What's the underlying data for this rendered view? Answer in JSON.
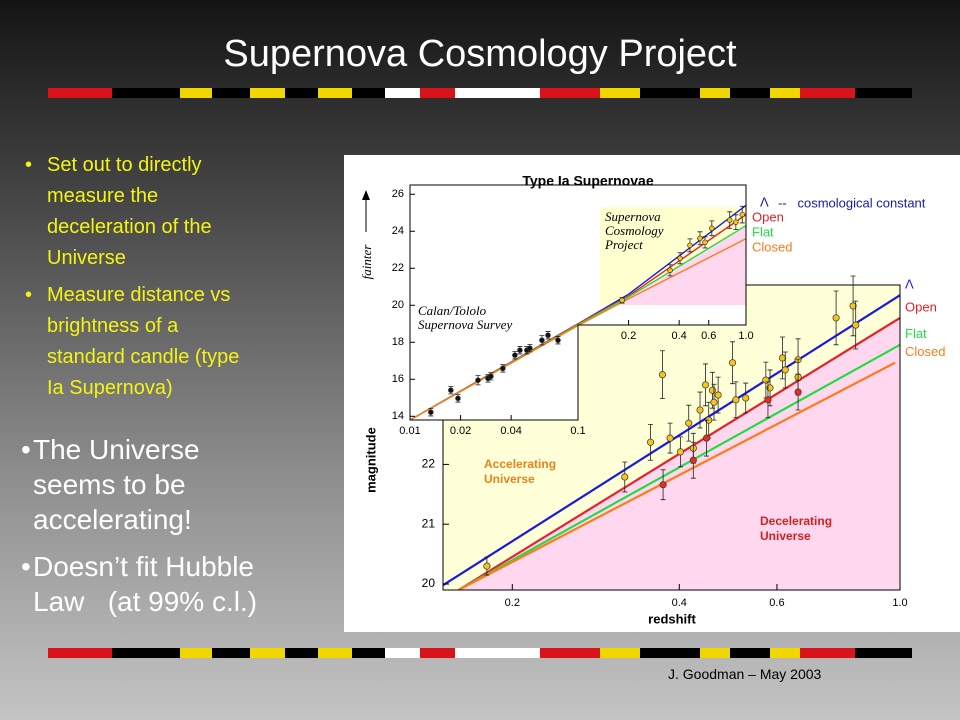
{
  "header": {
    "title": "Supernova Cosmology Project"
  },
  "bullets": [
    [
      "Set out to directly",
      "measure the",
      "deceleration of the",
      "Universe"
    ],
    [
      "Measure distance vs",
      "brightness of a",
      "standard candle (type",
      "Ia Supernova)"
    ]
  ],
  "highlights": [
    [
      "The Universe",
      "seems to be",
      "accelerating!"
    ],
    [
      "Doesn’t fit Hubble",
      "Law   (at 99% c.l.)"
    ]
  ],
  "footer": "J. Goodman – May 2003",
  "figure": {
    "title": "Type Ia Supernovae",
    "main": {
      "type": "scatter",
      "log_x": true,
      "x_label": "redshift",
      "y_label": "magnitude",
      "xlim": [
        0.15,
        1.0
      ],
      "ylim": [
        19.9,
        25.0
      ],
      "xticks": [
        0.2,
        0.4,
        0.6,
        {
          "value": 1,
          "label": "1.0"
        }
      ],
      "yticks": [
        20,
        21,
        22
      ],
      "regions": [
        {
          "lines": [
            "Accelerating",
            "Universe"
          ],
          "color": "#e8821e"
        },
        {
          "lines": [
            "Decelerating",
            "Universe"
          ],
          "color": "#d42020"
        }
      ],
      "series": [
        {
          "name": "Λ",
          "color": "#1a1adf",
          "x": [
            0.15,
            1.0
          ],
          "values": [
            19.98,
            24.83
          ]
        },
        {
          "name": "Open",
          "color": "#e8202a",
          "x": [
            0.16,
            1.0
          ],
          "values": [
            19.9,
            24.45
          ]
        },
        {
          "name": "Flat",
          "color": "#22dd44",
          "x": [
            0.16,
            1.0
          ],
          "values": [
            19.9,
            24.0
          ]
        },
        {
          "name": "Closed",
          "color": "#ff7a1a",
          "x": [
            0.16,
            0.98
          ],
          "values": [
            19.9,
            23.7
          ]
        }
      ],
      "points": [
        {
          "color": "#f5c518",
          "x": [
            0.18,
            0.319,
            0.355,
            0.373,
            0.385,
            0.402,
            0.416,
            0.424,
            0.436,
            0.446,
            0.452,
            0.459,
            0.462,
            0.47,
            0.499,
            0.506,
            0.527,
            0.573,
            0.583,
            0.614,
            0.621,
            0.655,
            0.655,
            0.767,
            0.823,
            0.832
          ],
          "values": [
            20.3,
            21.79,
            22.37,
            23.5,
            22.44,
            22.21,
            22.69,
            22.27,
            22.91,
            23.33,
            22.74,
            23.24,
            23.04,
            23.16,
            23.7,
            23.08,
            23.11,
            23.41,
            23.28,
            23.78,
            23.58,
            23.75,
            23.46,
            24.45,
            24.65,
            24.33
          ],
          "errors": [
            0.15,
            0.25,
            0.3,
            0.4,
            0.25,
            0.25,
            0.3,
            0.25,
            0.3,
            0.35,
            0.3,
            0.3,
            0.3,
            0.3,
            0.35,
            0.3,
            0.25,
            0.3,
            0.3,
            0.35,
            0.3,
            0.35,
            0.3,
            0.45,
            0.5,
            0.4
          ]
        },
        {
          "color": "#e03020",
          "x": [
            0.374,
            0.424,
            0.448,
            0.578,
            0.655
          ],
          "values": [
            21.66,
            22.07,
            22.44,
            23.08,
            23.21
          ],
          "errors": [
            0.25,
            0.3,
            0.3,
            0.3,
            0.3
          ]
        }
      ]
    },
    "inset": {
      "type": "scatter",
      "log_x": true,
      "y_label": "fainter",
      "xlim": [
        0.01,
        1.0
      ],
      "ylim": [
        13.8,
        26.5
      ],
      "xticks": [
        0.01,
        0.02,
        0.04,
        0.1,
        0.2,
        0.4,
        0.6,
        {
          "value": 1,
          "label": "1.0"
        }
      ],
      "yticks": [
        14,
        16,
        18,
        20,
        22,
        24,
        26
      ],
      "annotations": [
        {
          "lines": [
            "Supernova",
            "Cosmology",
            "Project"
          ]
        },
        {
          "lines": [
            "Calan/Tololo",
            "Supernova Survey"
          ]
        }
      ],
      "legend_note": "--   cosmological constant",
      "series": [
        {
          "name": "Λ",
          "color": "#1a1adf",
          "x": [
            0.01,
            0.1,
            0.2,
            1.0
          ],
          "values": [
            13.8,
            19.0,
            20.6,
            25.4
          ]
        },
        {
          "name": "Open",
          "color": "#e8202a",
          "x": [
            0.01,
            0.1,
            0.2,
            1.0
          ],
          "values": [
            13.8,
            19.0,
            20.5,
            24.9
          ]
        },
        {
          "name": "Flat",
          "color": "#22dd44",
          "x": [
            0.01,
            0.1,
            0.2,
            1.0
          ],
          "values": [
            13.8,
            18.95,
            20.45,
            24.3
          ]
        },
        {
          "name": "Closed",
          "color": "#ff7a1a",
          "x": [
            0.01,
            0.1,
            0.2,
            1.0
          ],
          "values": [
            13.8,
            18.9,
            20.35,
            23.6
          ]
        }
      ],
      "points": [
        {
          "color": "#111111",
          "x": [
            0.0133,
            0.0175,
            0.0193,
            0.0254,
            0.0291,
            0.0303,
            0.0357,
            0.0421,
            0.0451,
            0.0496,
            0.0517,
            0.061,
            0.0663,
            0.076
          ],
          "values": [
            14.22,
            15.41,
            14.97,
            15.95,
            16.05,
            16.16,
            16.59,
            17.3,
            17.57,
            17.57,
            17.68,
            18.11,
            18.38,
            18.11
          ],
          "errors": [
            0.2,
            0.2,
            0.2,
            0.25,
            0.2,
            0.2,
            0.2,
            0.2,
            0.2,
            0.2,
            0.2,
            0.25,
            0.2,
            0.2
          ]
        },
        {
          "color": "#f5c518",
          "x": [
            0.183,
            0.353,
            0.405,
            0.464,
            0.532,
            0.57,
            0.626,
            0.8,
            0.87,
            0.95
          ],
          "values": [
            20.27,
            21.89,
            22.54,
            23.24,
            23.62,
            23.4,
            24.16,
            24.6,
            24.49,
            24.9
          ],
          "errors": [
            0.15,
            0.3,
            0.3,
            0.35,
            0.35,
            0.3,
            0.4,
            0.45,
            0.4,
            0.45
          ]
        }
      ]
    }
  }
}
